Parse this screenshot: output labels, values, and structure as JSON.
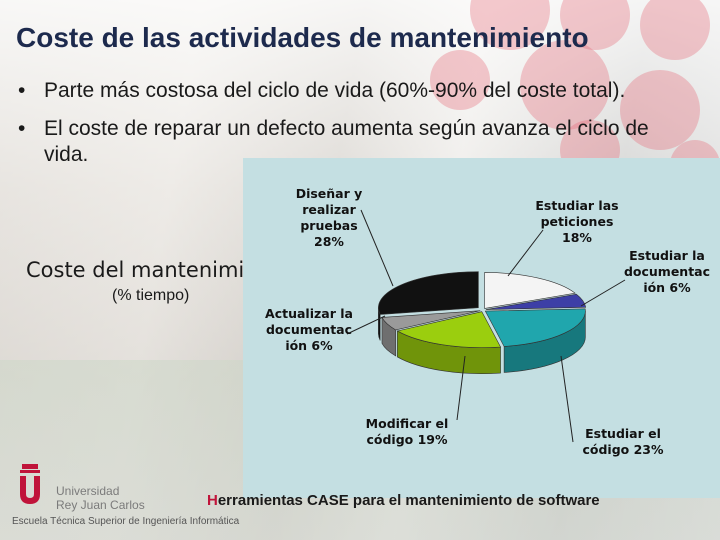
{
  "slide": {
    "title": "Coste de las actividades de mantenimiento",
    "bullet_mark": "•",
    "bullets": [
      "Parte más costosa del ciclo de vida (60%-90% del coste total).",
      "El coste de reparar un defecto aumenta según avanza el ciclo de vida."
    ],
    "side_label": "Coste del mantenimi",
    "side_sublabel": "(% tiempo)",
    "footer_first_letter": "H",
    "footer_rest": "erramientas CASE para el mantenimiento de software"
  },
  "logo": {
    "university_line1": "Universidad",
    "university_line2": "Rey Juan Carlos",
    "school": "Escuela Técnica Superior de Ingeniería Informática",
    "color": "#c0143a"
  },
  "chart_data": {
    "type": "pie",
    "style": "3d-exploded",
    "background": "#c4dfe2",
    "slices": [
      {
        "label": "Estudiar las peticiones",
        "pct_label": "18%",
        "value": 18,
        "color": "#f4f4f4"
      },
      {
        "label": "Estudiar la documentación",
        "pct_label": "6%",
        "value": 6,
        "color": "#3d3fa6"
      },
      {
        "label": "Estudiar el código",
        "pct_label": "23%",
        "value": 23,
        "color": "#20a6ad"
      },
      {
        "label": "Modificar el código",
        "pct_label": "19%",
        "value": 19,
        "color": "#9bce0e"
      },
      {
        "label": "Actualizar la documentación",
        "pct_label": "6%",
        "value": 6,
        "color": "#9a9a9a"
      },
      {
        "label": "Diseñar y realizar pruebas",
        "pct_label": "28%",
        "value": 28,
        "color": "#111111"
      }
    ],
    "callouts": [
      {
        "lines": [
          "Diseñar y",
          "realizar",
          "pruebas",
          "28%"
        ]
      },
      {
        "lines": [
          "Estudiar las",
          "peticiones",
          "18%"
        ]
      },
      {
        "lines": [
          "Estudiar la",
          "documentac",
          "ión 6%"
        ]
      },
      {
        "lines": [
          "Actualizar la",
          "documentac",
          "ión 6%"
        ]
      },
      {
        "lines": [
          "Modificar el",
          "código 19%"
        ]
      },
      {
        "lines": [
          "Estudiar el",
          "código 23%"
        ]
      }
    ]
  }
}
